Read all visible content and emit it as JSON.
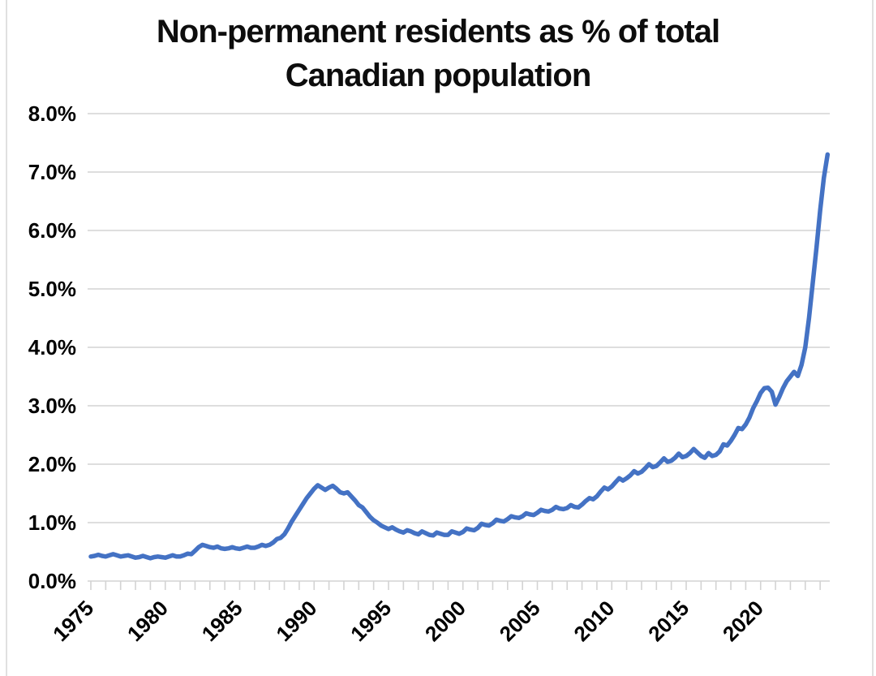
{
  "chart_data": {
    "type": "line",
    "title": "Non-permanent residents as % of total Canadian population",
    "title_lines": [
      "Non-permanent residents as % of total",
      "Canadian population"
    ],
    "grid": true,
    "legend": "none",
    "colors": {
      "line": "#4472C4",
      "grid": "#d9d9d9",
      "axis": "#d3d3d3",
      "text": "#000000",
      "frame": "#d9d9d9",
      "background": "#ffffff"
    },
    "y_axis": {
      "min": 0,
      "max": 8,
      "step": 1,
      "labels": [
        "0.0%",
        "1.0%",
        "2.0%",
        "3.0%",
        "4.0%",
        "5.0%",
        "6.0%",
        "7.0%",
        "8.0%"
      ]
    },
    "x_axis": {
      "first_tick_year": 1975,
      "last_tick_year": 2024,
      "minor_tick_every_years": 1,
      "label_years": [
        1975,
        1980,
        1985,
        1990,
        1995,
        2000,
        2005,
        2010,
        2015,
        2020
      ],
      "labels": [
        "1975",
        "1980",
        "1985",
        "1990",
        "1995",
        "2000",
        "2005",
        "2010",
        "2015",
        "2020"
      ]
    },
    "series": [
      {
        "color": "#4472C4",
        "start_year": 1975,
        "step_years": 0.25,
        "unit": "percent",
        "values": [
          0.42,
          0.43,
          0.45,
          0.43,
          0.42,
          0.44,
          0.46,
          0.44,
          0.42,
          0.43,
          0.44,
          0.42,
          0.4,
          0.41,
          0.43,
          0.41,
          0.39,
          0.41,
          0.42,
          0.41,
          0.4,
          0.42,
          0.44,
          0.42,
          0.42,
          0.44,
          0.47,
          0.46,
          0.52,
          0.58,
          0.62,
          0.6,
          0.58,
          0.57,
          0.59,
          0.56,
          0.55,
          0.56,
          0.58,
          0.56,
          0.55,
          0.57,
          0.59,
          0.57,
          0.57,
          0.59,
          0.62,
          0.6,
          0.62,
          0.66,
          0.72,
          0.74,
          0.8,
          0.9,
          1.02,
          1.12,
          1.22,
          1.32,
          1.42,
          1.5,
          1.58,
          1.64,
          1.6,
          1.56,
          1.6,
          1.63,
          1.58,
          1.52,
          1.5,
          1.52,
          1.45,
          1.38,
          1.3,
          1.26,
          1.18,
          1.1,
          1.04,
          1.0,
          0.95,
          0.92,
          0.89,
          0.92,
          0.88,
          0.85,
          0.83,
          0.87,
          0.85,
          0.82,
          0.8,
          0.85,
          0.82,
          0.79,
          0.78,
          0.83,
          0.81,
          0.79,
          0.79,
          0.85,
          0.83,
          0.81,
          0.84,
          0.9,
          0.88,
          0.87,
          0.91,
          0.98,
          0.96,
          0.95,
          0.99,
          1.05,
          1.03,
          1.02,
          1.06,
          1.11,
          1.09,
          1.08,
          1.11,
          1.16,
          1.14,
          1.13,
          1.17,
          1.22,
          1.2,
          1.19,
          1.22,
          1.27,
          1.24,
          1.23,
          1.25,
          1.3,
          1.27,
          1.26,
          1.31,
          1.37,
          1.42,
          1.4,
          1.45,
          1.53,
          1.6,
          1.57,
          1.62,
          1.69,
          1.76,
          1.72,
          1.76,
          1.81,
          1.88,
          1.84,
          1.87,
          1.93,
          2.0,
          1.95,
          1.97,
          2.03,
          2.1,
          2.04,
          2.06,
          2.11,
          2.18,
          2.12,
          2.14,
          2.19,
          2.26,
          2.2,
          2.14,
          2.11,
          2.19,
          2.14,
          2.16,
          2.22,
          2.34,
          2.32,
          2.4,
          2.5,
          2.62,
          2.6,
          2.68,
          2.8,
          2.96,
          3.08,
          3.22,
          3.3,
          3.31,
          3.24,
          3.02,
          3.15,
          3.3,
          3.42,
          3.5,
          3.58,
          3.51,
          3.7,
          4.0,
          4.5,
          5.1,
          5.7,
          6.35,
          6.9,
          7.3
        ]
      }
    ]
  }
}
